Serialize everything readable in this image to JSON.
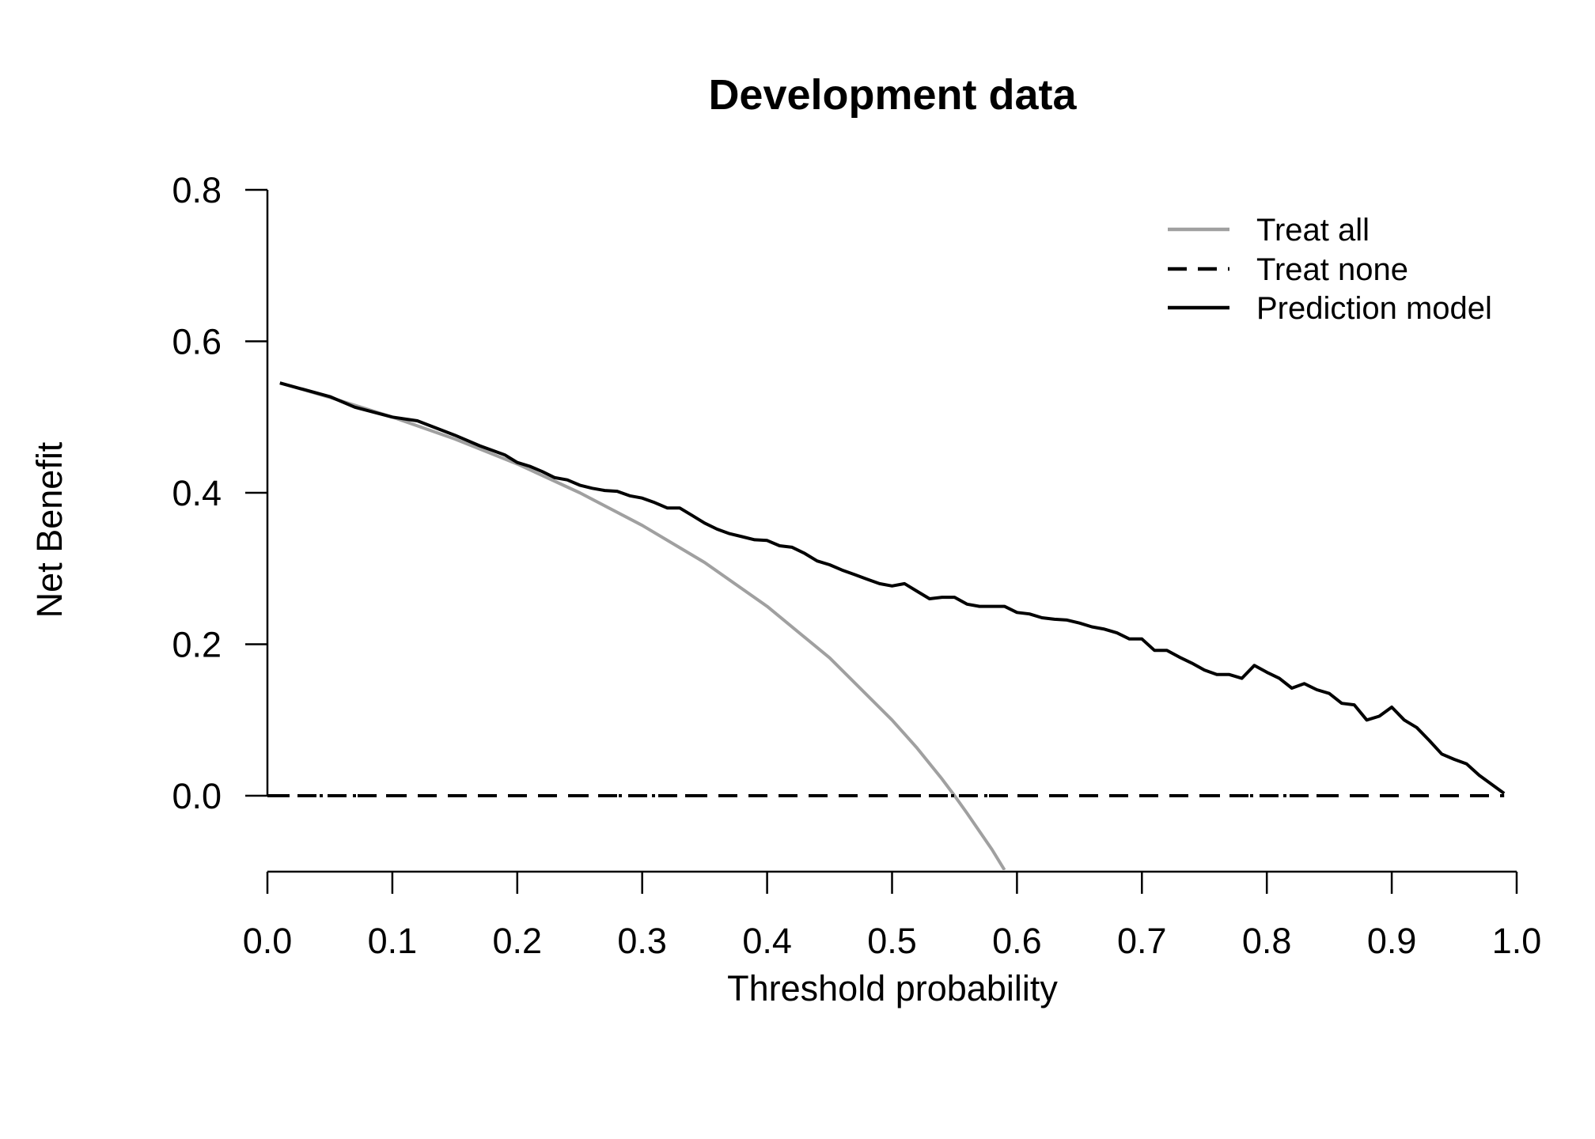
{
  "chart_data": {
    "type": "line",
    "title": "Development data",
    "xlabel": "Threshold probability",
    "ylabel": "Net Benefit",
    "xlim": [
      0.0,
      1.0
    ],
    "ylim": [
      -0.1,
      0.8
    ],
    "x_ticks": [
      "0.0",
      "0.1",
      "0.2",
      "0.3",
      "0.4",
      "0.5",
      "0.6",
      "0.7",
      "0.8",
      "0.9",
      "1.0"
    ],
    "y_ticks": [
      "0.0",
      "0.2",
      "0.4",
      "0.6",
      "0.8"
    ],
    "grid": false,
    "legend_position": "top-right",
    "series": [
      {
        "name": "Treat all",
        "color": "#a0a0a0",
        "style": "solid",
        "prevalence": 0.55,
        "x": [
          0.01,
          0.05,
          0.1,
          0.15,
          0.2,
          0.25,
          0.3,
          0.35,
          0.4,
          0.45,
          0.5,
          0.52,
          0.54,
          0.55,
          0.56,
          0.57,
          0.58,
          0.59
        ],
        "values": [
          0.545,
          0.526,
          0.5,
          0.471,
          0.438,
          0.4,
          0.357,
          0.308,
          0.25,
          0.182,
          0.1,
          0.063,
          0.022,
          0.0,
          -0.023,
          -0.047,
          -0.071,
          -0.098
        ]
      },
      {
        "name": "Treat none",
        "color": "#000000",
        "style": "dashed",
        "x": [
          0.0,
          0.99
        ],
        "values": [
          0.0,
          0.0
        ]
      },
      {
        "name": "Prediction model",
        "color": "#000000",
        "style": "solid",
        "x": [
          0.01,
          0.05,
          0.07,
          0.1,
          0.12,
          0.15,
          0.17,
          0.19,
          0.2,
          0.21,
          0.22,
          0.23,
          0.24,
          0.25,
          0.26,
          0.27,
          0.28,
          0.29,
          0.3,
          0.31,
          0.32,
          0.33,
          0.34,
          0.35,
          0.36,
          0.37,
          0.38,
          0.39,
          0.4,
          0.41,
          0.42,
          0.43,
          0.44,
          0.45,
          0.46,
          0.47,
          0.48,
          0.49,
          0.5,
          0.51,
          0.52,
          0.53,
          0.54,
          0.55,
          0.56,
          0.57,
          0.58,
          0.59,
          0.6,
          0.61,
          0.62,
          0.63,
          0.64,
          0.65,
          0.66,
          0.67,
          0.68,
          0.69,
          0.7,
          0.71,
          0.72,
          0.73,
          0.74,
          0.75,
          0.76,
          0.77,
          0.78,
          0.79,
          0.8,
          0.81,
          0.82,
          0.83,
          0.84,
          0.85,
          0.86,
          0.87,
          0.88,
          0.89,
          0.9,
          0.91,
          0.92,
          0.93,
          0.94,
          0.95,
          0.96,
          0.97,
          0.98,
          0.99
        ],
        "values": [
          0.545,
          0.527,
          0.513,
          0.5,
          0.495,
          0.476,
          0.462,
          0.45,
          0.44,
          0.435,
          0.428,
          0.42,
          0.417,
          0.41,
          0.406,
          0.403,
          0.402,
          0.396,
          0.393,
          0.387,
          0.38,
          0.38,
          0.37,
          0.36,
          0.352,
          0.346,
          0.342,
          0.338,
          0.337,
          0.33,
          0.328,
          0.32,
          0.31,
          0.305,
          0.298,
          0.292,
          0.286,
          0.28,
          0.277,
          0.28,
          0.27,
          0.26,
          0.262,
          0.262,
          0.253,
          0.25,
          0.25,
          0.25,
          0.242,
          0.24,
          0.235,
          0.233,
          0.232,
          0.228,
          0.223,
          0.22,
          0.215,
          0.207,
          0.207,
          0.192,
          0.192,
          0.183,
          0.175,
          0.166,
          0.16,
          0.16,
          0.155,
          0.172,
          0.163,
          0.155,
          0.142,
          0.148,
          0.14,
          0.135,
          0.122,
          0.12,
          0.1,
          0.105,
          0.117,
          0.1,
          0.09,
          0.073,
          0.055,
          0.048,
          0.042,
          0.027,
          0.015,
          0.003
        ]
      }
    ]
  }
}
